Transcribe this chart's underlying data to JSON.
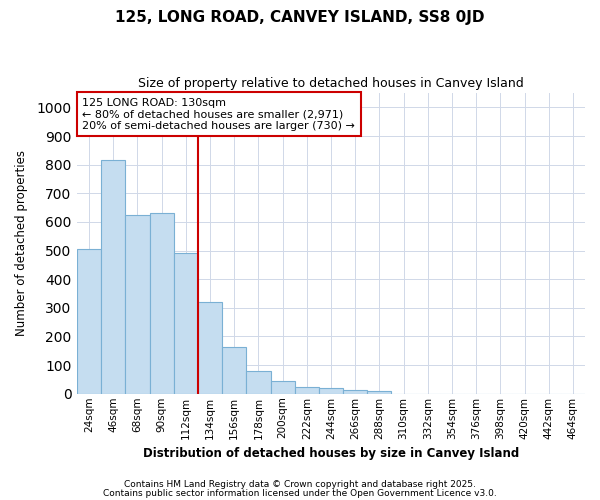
{
  "title": "125, LONG ROAD, CANVEY ISLAND, SS8 0JD",
  "subtitle": "Size of property relative to detached houses in Canvey Island",
  "xlabel": "Distribution of detached houses by size in Canvey Island",
  "ylabel": "Number of detached properties",
  "categories": [
    "24sqm",
    "46sqm",
    "68sqm",
    "90sqm",
    "112sqm",
    "134sqm",
    "156sqm",
    "178sqm",
    "200sqm",
    "222sqm",
    "244sqm",
    "266sqm",
    "288sqm",
    "310sqm",
    "332sqm",
    "354sqm",
    "376sqm",
    "398sqm",
    "420sqm",
    "442sqm",
    "464sqm"
  ],
  "values": [
    505,
    815,
    625,
    630,
    490,
    320,
    163,
    80,
    45,
    25,
    20,
    12,
    10,
    0,
    0,
    0,
    0,
    0,
    0,
    0,
    0
  ],
  "bar_color": "#c5ddf0",
  "bar_edge_color": "#7ab0d4",
  "background_color": "#ffffff",
  "grid_color": "#d0d8e8",
  "vline_color": "#cc0000",
  "vline_pos": 4.5,
  "annotation_text": "125 LONG ROAD: 130sqm\n← 80% of detached houses are smaller (2,971)\n20% of semi-detached houses are larger (730) →",
  "annotation_box_color": "#ffffff",
  "annotation_box_edge": "#cc0000",
  "ylim": [
    0,
    1050
  ],
  "yticks": [
    0,
    100,
    200,
    300,
    400,
    500,
    600,
    700,
    800,
    900,
    1000
  ],
  "footer1": "Contains HM Land Registry data © Crown copyright and database right 2025.",
  "footer2": "Contains public sector information licensed under the Open Government Licence v3.0."
}
